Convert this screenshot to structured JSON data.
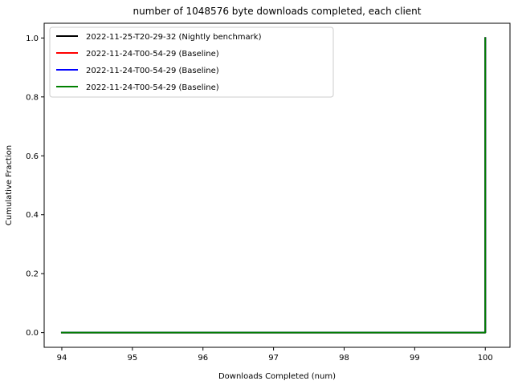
{
  "chart_data": {
    "type": "line",
    "title": "number of 1048576 byte downloads completed, each client",
    "xlabel": "Downloads Completed (num)",
    "ylabel": "Cumulative Fraction",
    "xlim": [
      93.75,
      100.35
    ],
    "ylim": [
      -0.05,
      1.05
    ],
    "xticks": [
      94,
      95,
      96,
      97,
      98,
      99,
      100
    ],
    "yticks": [
      0.0,
      0.2,
      0.4,
      0.6,
      0.8,
      1.0
    ],
    "ytick_labels": [
      "0.0",
      "0.2",
      "0.4",
      "0.6",
      "0.8",
      "1.0"
    ],
    "grid": false,
    "legend_position": "top-left",
    "series": [
      {
        "name": "2022-11-25-T20-29-32 (Nightly benchmark)",
        "color": "#000000",
        "x": [
          94,
          100,
          100
        ],
        "y": [
          0.0,
          0.0,
          1.0
        ]
      },
      {
        "name": "2022-11-24-T00-54-29 (Baseline)",
        "color": "#ff0000",
        "x": [
          94,
          100,
          100
        ],
        "y": [
          0.0,
          0.0,
          1.0
        ]
      },
      {
        "name": "2022-11-24-T00-54-29 (Baseline)",
        "color": "#0000ff",
        "x": [
          94,
          100,
          100
        ],
        "y": [
          0.0,
          0.0,
          1.0
        ]
      },
      {
        "name": "2022-11-24-T00-54-29 (Baseline)",
        "color": "#008000",
        "x": [
          94,
          100,
          100
        ],
        "y": [
          0.0,
          0.0,
          1.0
        ]
      }
    ]
  }
}
